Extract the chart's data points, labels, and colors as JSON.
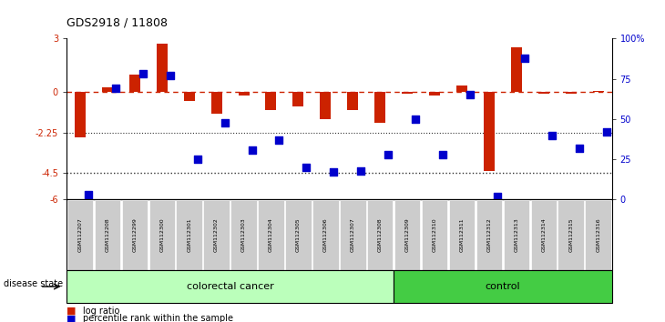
{
  "title": "GDS2918 / 11808",
  "samples": [
    "GSM112207",
    "GSM112208",
    "GSM112299",
    "GSM112300",
    "GSM112301",
    "GSM112302",
    "GSM112303",
    "GSM112304",
    "GSM112305",
    "GSM112306",
    "GSM112307",
    "GSM112308",
    "GSM112309",
    "GSM112310",
    "GSM112311",
    "GSM112312",
    "GSM112313",
    "GSM112314",
    "GSM112315",
    "GSM112316"
  ],
  "log_ratio": [
    -2.5,
    0.3,
    1.0,
    2.7,
    -0.5,
    -1.2,
    -0.2,
    -1.0,
    -0.8,
    -1.5,
    -1.0,
    -1.7,
    -0.1,
    -0.2,
    0.4,
    -4.4,
    2.5,
    -0.1,
    -0.1,
    0.1
  ],
  "percentile_rank": [
    3,
    69,
    78,
    77,
    25,
    48,
    31,
    37,
    20,
    17,
    18,
    28,
    50,
    28,
    65,
    2,
    88,
    40,
    32,
    42
  ],
  "colorectal_count": 12,
  "control_count": 8,
  "bar_color": "#cc2200",
  "dot_color": "#0000cc",
  "ylim_left": [
    -6,
    3
  ],
  "dotted_lines": [
    -2.25,
    -4.5
  ],
  "colorectal_color": "#bbffbb",
  "control_color": "#44cc44",
  "colorectal_label": "colorectal cancer",
  "control_label": "control",
  "disease_state_label": "disease state",
  "legend_log_ratio": "log ratio",
  "legend_percentile": "percentile rank within the sample",
  "right_yticklabels": [
    "0",
    "25",
    "50",
    "75",
    "100%"
  ],
  "right_ytick_vals": [
    0,
    25,
    50,
    75,
    100
  ],
  "left_ytick_vals": [
    -6,
    -4.5,
    -2.25,
    0,
    3
  ],
  "left_yticklabels": [
    "-6",
    "-4.5",
    "-2.25",
    "0",
    "3"
  ]
}
